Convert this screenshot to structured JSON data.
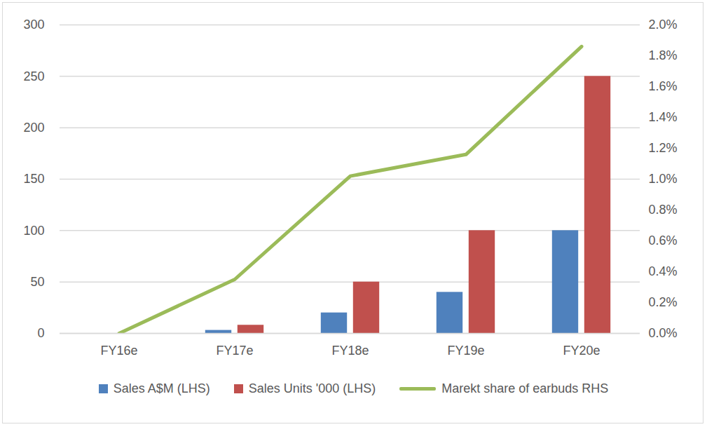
{
  "chart_data": {
    "type": "bar",
    "categories": [
      "FY16e",
      "FY17e",
      "FY18e",
      "FY19e",
      "FY20e"
    ],
    "series": [
      {
        "name": "Sales A$M (LHS)",
        "color": "#4f81bd",
        "values": [
          0,
          3,
          20,
          40,
          100
        ]
      },
      {
        "name": "Sales Units '000 (LHS)",
        "color": "#c0504d",
        "values": [
          0,
          8,
          50,
          100,
          250
        ]
      },
      {
        "name": "Marekt share of earbuds RHS",
        "color": "#9bbb59",
        "type": "line",
        "axis": "y2",
        "values": [
          0,
          0.35,
          1.02,
          1.16,
          1.86
        ]
      }
    ],
    "ylim": [
      0,
      300
    ],
    "yticks": [
      0,
      50,
      100,
      150,
      200,
      250,
      300
    ],
    "y2lim": [
      0,
      2
    ],
    "y2ticks": [
      {
        "value": 0,
        "label": "0.0%"
      },
      {
        "value": 0.2,
        "label": "0.2%"
      },
      {
        "value": 0.4,
        "label": "0.4%"
      },
      {
        "value": 0.6,
        "label": "0.6%"
      },
      {
        "value": 0.8,
        "label": "0.8%"
      },
      {
        "value": 1.0,
        "label": "1.0%"
      },
      {
        "value": 1.2,
        "label": "1.2%"
      },
      {
        "value": 1.4,
        "label": "1.4%"
      },
      {
        "value": 1.6,
        "label": "1.6%"
      },
      {
        "value": 1.8,
        "label": "1.8%"
      },
      {
        "value": 2.0,
        "label": "2.0%"
      }
    ],
    "grid": true,
    "legend": "bottom"
  }
}
